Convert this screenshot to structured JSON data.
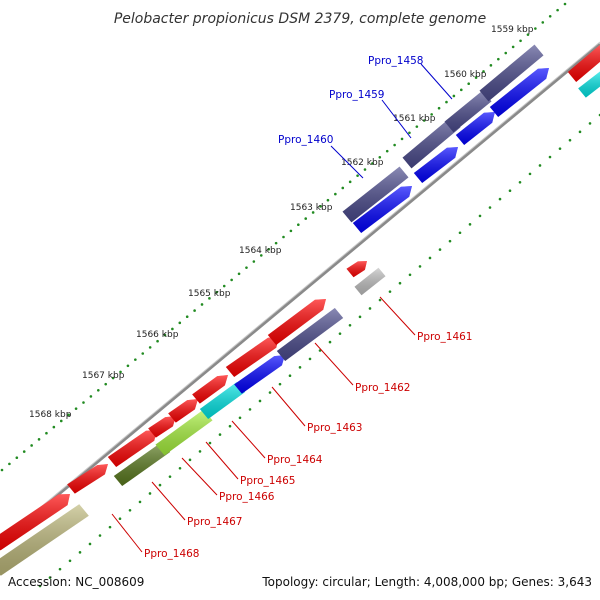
{
  "title": "Pelobacter propionicus DSM 2379, complete genome",
  "footer": {
    "accession": "Accession: NC_008609",
    "summary": "Topology: circular; Length: 4,008,000 bp; Genes: 3,643"
  },
  "ticks": [
    {
      "label": "1559 kbp",
      "kbp": 1559
    },
    {
      "label": "1560 kbp",
      "kbp": 1560
    },
    {
      "label": "1561 kbp",
      "kbp": 1561
    },
    {
      "label": "1562 kbp",
      "kbp": 1562
    },
    {
      "label": "1563 kbp",
      "kbp": 1563
    },
    {
      "label": "1564 kbp",
      "kbp": 1564
    },
    {
      "label": "1565 kbp",
      "kbp": 1565
    },
    {
      "label": "1566 kbp",
      "kbp": 1566
    },
    {
      "label": "1567 kbp",
      "kbp": 1567
    },
    {
      "label": "1568 kbp",
      "kbp": 1568
    }
  ],
  "genes": [
    {
      "name": "Ppro_1458",
      "label_color": "#0000cc"
    },
    {
      "name": "Ppro_1459",
      "label_color": "#0000cc"
    },
    {
      "name": "Ppro_1460",
      "label_color": "#0000cc"
    },
    {
      "name": "Ppro_1461",
      "label_color": "#cc0000"
    },
    {
      "name": "Ppro_1462",
      "label_color": "#cc0000"
    },
    {
      "name": "Ppro_1463",
      "label_color": "#cc0000"
    },
    {
      "name": "Ppro_1464",
      "label_color": "#cc0000"
    },
    {
      "name": "Ppro_1465",
      "label_color": "#cc0000"
    },
    {
      "name": "Ppro_1466",
      "label_color": "#cc0000"
    },
    {
      "name": "Ppro_1467",
      "label_color": "#cc0000"
    },
    {
      "name": "Ppro_1468",
      "label_color": "#cc0000"
    }
  ],
  "colors": {
    "backbone": "#8c8c8c",
    "cds_forward": "#ff0000",
    "cds_reverse_blue": "#0000ff",
    "cds_slate": "#4a4a8c",
    "cyan": "#00e5e5",
    "lime": "#a6f03c",
    "olive": "#5a7a1e",
    "khaki": "#bdb87a",
    "grey": "#c0c0c0",
    "tick_dot": "#228b22"
  }
}
